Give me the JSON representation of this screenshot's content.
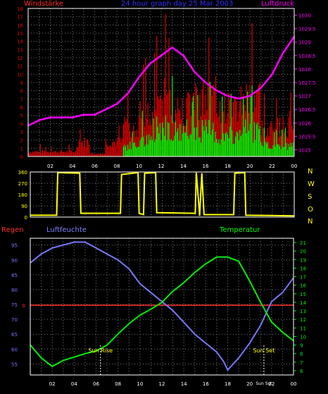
{
  "header": {
    "left": "Windstärke",
    "center": "24 hour graph day  25 Mar 2003",
    "right": "Luftdruck"
  },
  "colors": {
    "wind": "#dd0000",
    "gust": "#00ff00",
    "pressure": "#ff00ff",
    "direction": "#ffff00",
    "humidity": "#7777ff",
    "temperature": "#00ee00",
    "rain": "#ff3030",
    "grid": "#777777",
    "axis": "#ffffff"
  },
  "compass_labels": [
    "N",
    "W",
    "S",
    "O",
    "N"
  ],
  "chart_data": [
    {
      "type": "bar",
      "name": "wind-pressure",
      "x_tick_labels": [
        "02",
        "04",
        "06",
        "08",
        "10",
        "12",
        "14",
        "16",
        "18",
        "20",
        "22",
        "00"
      ],
      "y_left_ticks": [
        0,
        1,
        2,
        3,
        4,
        5,
        6,
        7,
        8,
        9,
        10,
        11,
        12,
        13,
        14,
        15,
        16,
        17,
        18
      ],
      "y_right_ticks": [
        "1025",
        "1025.5",
        "1026",
        "1026.5",
        "1027",
        "1027.5",
        "1028",
        "1028.5",
        "1029",
        "1029.5",
        "1030"
      ],
      "ylim_left": [
        0,
        18
      ],
      "ylim_right": [
        1024.75,
        1030.25
      ],
      "xlim_hours": [
        0,
        24
      ],
      "pressure_series": [
        {
          "hour": 0.0,
          "value": 1025.9
        },
        {
          "hour": 1.0,
          "value": 1026.1
        },
        {
          "hour": 2.0,
          "value": 1026.2
        },
        {
          "hour": 3.0,
          "value": 1026.2
        },
        {
          "hour": 4.0,
          "value": 1026.2
        },
        {
          "hour": 5.0,
          "value": 1026.3
        },
        {
          "hour": 6.0,
          "value": 1026.3
        },
        {
          "hour": 7.0,
          "value": 1026.5
        },
        {
          "hour": 8.0,
          "value": 1026.7
        },
        {
          "hour": 9.0,
          "value": 1027.1
        },
        {
          "hour": 10.0,
          "value": 1027.7
        },
        {
          "hour": 11.0,
          "value": 1028.2
        },
        {
          "hour": 12.0,
          "value": 1028.5
        },
        {
          "hour": 13.0,
          "value": 1028.8
        },
        {
          "hour": 14.0,
          "value": 1028.5
        },
        {
          "hour": 15.0,
          "value": 1027.9
        },
        {
          "hour": 16.0,
          "value": 1027.5
        },
        {
          "hour": 17.0,
          "value": 1027.2
        },
        {
          "hour": 18.0,
          "value": 1027.0
        },
        {
          "hour": 19.0,
          "value": 1026.9
        },
        {
          "hour": 20.0,
          "value": 1027.0
        },
        {
          "hour": 21.0,
          "value": 1027.3
        },
        {
          "hour": 22.0,
          "value": 1027.8
        },
        {
          "hour": 23.0,
          "value": 1028.6
        },
        {
          "hour": 24.0,
          "value": 1029.2
        }
      ],
      "wind_segments": [
        {
          "start": 0.0,
          "end": 4.5,
          "level": 0.5,
          "gust": 0
        },
        {
          "start": 4.5,
          "end": 5.5,
          "level": 1.5,
          "gust": 0
        },
        {
          "start": 5.5,
          "end": 7.0,
          "level": 0.3,
          "gust": 0
        },
        {
          "start": 7.0,
          "end": 8.6,
          "level": 1.5,
          "gust": 0
        },
        {
          "start": 8.6,
          "end": 10.0,
          "level": 3.0,
          "gust": 1.0
        },
        {
          "start": 10.0,
          "end": 11.5,
          "level": 4.5,
          "gust": 1.5
        },
        {
          "start": 11.5,
          "end": 13.0,
          "level": 6.0,
          "gust": 3.0
        },
        {
          "start": 13.0,
          "end": 14.5,
          "level": 5.0,
          "gust": 2.5
        },
        {
          "start": 14.5,
          "end": 17.0,
          "level": 6.0,
          "gust": 2.5
        },
        {
          "start": 17.0,
          "end": 19.0,
          "level": 5.0,
          "gust": 2.0
        },
        {
          "start": 19.0,
          "end": 21.0,
          "level": 6.0,
          "gust": 2.5
        },
        {
          "start": 21.0,
          "end": 23.5,
          "level": 3.0,
          "gust": 1.0
        },
        {
          "start": 23.5,
          "end": 24.0,
          "level": 3.5,
          "gust": 1.0
        }
      ]
    },
    {
      "type": "line",
      "name": "wind-direction",
      "y_ticks": [
        0,
        90,
        180,
        270,
        360
      ],
      "ylim": [
        0,
        360
      ],
      "direction_series": [
        {
          "hour": 0.0,
          "value": 15
        },
        {
          "hour": 2.4,
          "value": 15
        },
        {
          "hour": 2.5,
          "value": 355
        },
        {
          "hour": 4.5,
          "value": 350
        },
        {
          "hour": 4.6,
          "value": 30
        },
        {
          "hour": 8.2,
          "value": 30
        },
        {
          "hour": 8.3,
          "value": 340
        },
        {
          "hour": 9.8,
          "value": 355
        },
        {
          "hour": 9.9,
          "value": 30
        },
        {
          "hour": 10.3,
          "value": 20
        },
        {
          "hour": 10.4,
          "value": 350
        },
        {
          "hour": 11.4,
          "value": 355
        },
        {
          "hour": 11.5,
          "value": 35
        },
        {
          "hour": 15.0,
          "value": 30
        },
        {
          "hour": 15.1,
          "value": 355
        },
        {
          "hour": 15.4,
          "value": 10
        },
        {
          "hour": 15.6,
          "value": 350
        },
        {
          "hour": 15.8,
          "value": 20
        },
        {
          "hour": 18.5,
          "value": 20
        },
        {
          "hour": 18.6,
          "value": 350
        },
        {
          "hour": 19.5,
          "value": 355
        },
        {
          "hour": 19.6,
          "value": 15
        },
        {
          "hour": 24.0,
          "value": 10
        }
      ]
    },
    {
      "type": "line",
      "name": "humidity-temperature",
      "header_labels": {
        "rain": "Regen",
        "humidity": "Luftfeuchte",
        "temperature": "Temperatur"
      },
      "x_tick_labels": [
        "02",
        "04",
        "06",
        "08",
        "10",
        "12",
        "14",
        "16",
        "18",
        "20",
        "22",
        "00"
      ],
      "humidity_ticks": [
        55,
        60,
        65,
        70,
        75,
        80,
        85,
        90,
        95
      ],
      "humidity_ylim": [
        51.3,
        97.3
      ],
      "temperature_ticks": [
        6,
        7,
        8,
        9,
        10,
        11,
        12,
        13,
        14,
        15,
        16,
        17,
        18,
        19,
        20,
        21
      ],
      "temperature_ylim": [
        5.5,
        21.5
      ],
      "rain_value": "0",
      "annotations": [
        "Sun Rise",
        "Sun Set"
      ],
      "annotation_hours": [
        6.4,
        21.3
      ],
      "overlap_tick_labels": [
        "Sun",
        "Set"
      ],
      "humidity_series": [
        {
          "hour": 0.0,
          "value": 89
        },
        {
          "hour": 1.0,
          "value": 92
        },
        {
          "hour": 2.0,
          "value": 94
        },
        {
          "hour": 3.0,
          "value": 95
        },
        {
          "hour": 4.0,
          "value": 96
        },
        {
          "hour": 5.0,
          "value": 96
        },
        {
          "hour": 6.0,
          "value": 94
        },
        {
          "hour": 7.0,
          "value": 92
        },
        {
          "hour": 8.0,
          "value": 90
        },
        {
          "hour": 9.0,
          "value": 87
        },
        {
          "hour": 10.0,
          "value": 82
        },
        {
          "hour": 11.0,
          "value": 79
        },
        {
          "hour": 12.0,
          "value": 76
        },
        {
          "hour": 13.0,
          "value": 73
        },
        {
          "hour": 14.0,
          "value": 69
        },
        {
          "hour": 15.0,
          "value": 65
        },
        {
          "hour": 16.0,
          "value": 62
        },
        {
          "hour": 17.0,
          "value": 59
        },
        {
          "hour": 17.6,
          "value": 56
        },
        {
          "hour": 18.0,
          "value": 53
        },
        {
          "hour": 18.5,
          "value": 55
        },
        {
          "hour": 19.0,
          "value": 57
        },
        {
          "hour": 20.0,
          "value": 62
        },
        {
          "hour": 21.0,
          "value": 68
        },
        {
          "hour": 22.0,
          "value": 76
        },
        {
          "hour": 23.0,
          "value": 79
        },
        {
          "hour": 24.0,
          "value": 84
        }
      ],
      "temperature_series": [
        {
          "hour": 0.0,
          "value": 9
        },
        {
          "hour": 1.0,
          "value": 7.5
        },
        {
          "hour": 2.0,
          "value": 6.5
        },
        {
          "hour": 3.0,
          "value": 7.2
        },
        {
          "hour": 4.0,
          "value": 7.6
        },
        {
          "hour": 5.0,
          "value": 8.0
        },
        {
          "hour": 6.0,
          "value": 8.3
        },
        {
          "hour": 7.0,
          "value": 9.0
        },
        {
          "hour": 8.0,
          "value": 10.3
        },
        {
          "hour": 9.0,
          "value": 11.5
        },
        {
          "hour": 10.0,
          "value": 12.5
        },
        {
          "hour": 11.0,
          "value": 13.2
        },
        {
          "hour": 12.0,
          "value": 14.0
        },
        {
          "hour": 13.0,
          "value": 15.3
        },
        {
          "hour": 14.0,
          "value": 16.3
        },
        {
          "hour": 15.0,
          "value": 17.5
        },
        {
          "hour": 16.0,
          "value": 18.5
        },
        {
          "hour": 17.0,
          "value": 19.3
        },
        {
          "hour": 18.0,
          "value": 19.3
        },
        {
          "hour": 19.0,
          "value": 18.8
        },
        {
          "hour": 20.0,
          "value": 16.5
        },
        {
          "hour": 21.0,
          "value": 14.0
        },
        {
          "hour": 22.0,
          "value": 11.7
        },
        {
          "hour": 23.0,
          "value": 10.5
        },
        {
          "hour": 24.0,
          "value": 9.5
        }
      ]
    }
  ]
}
